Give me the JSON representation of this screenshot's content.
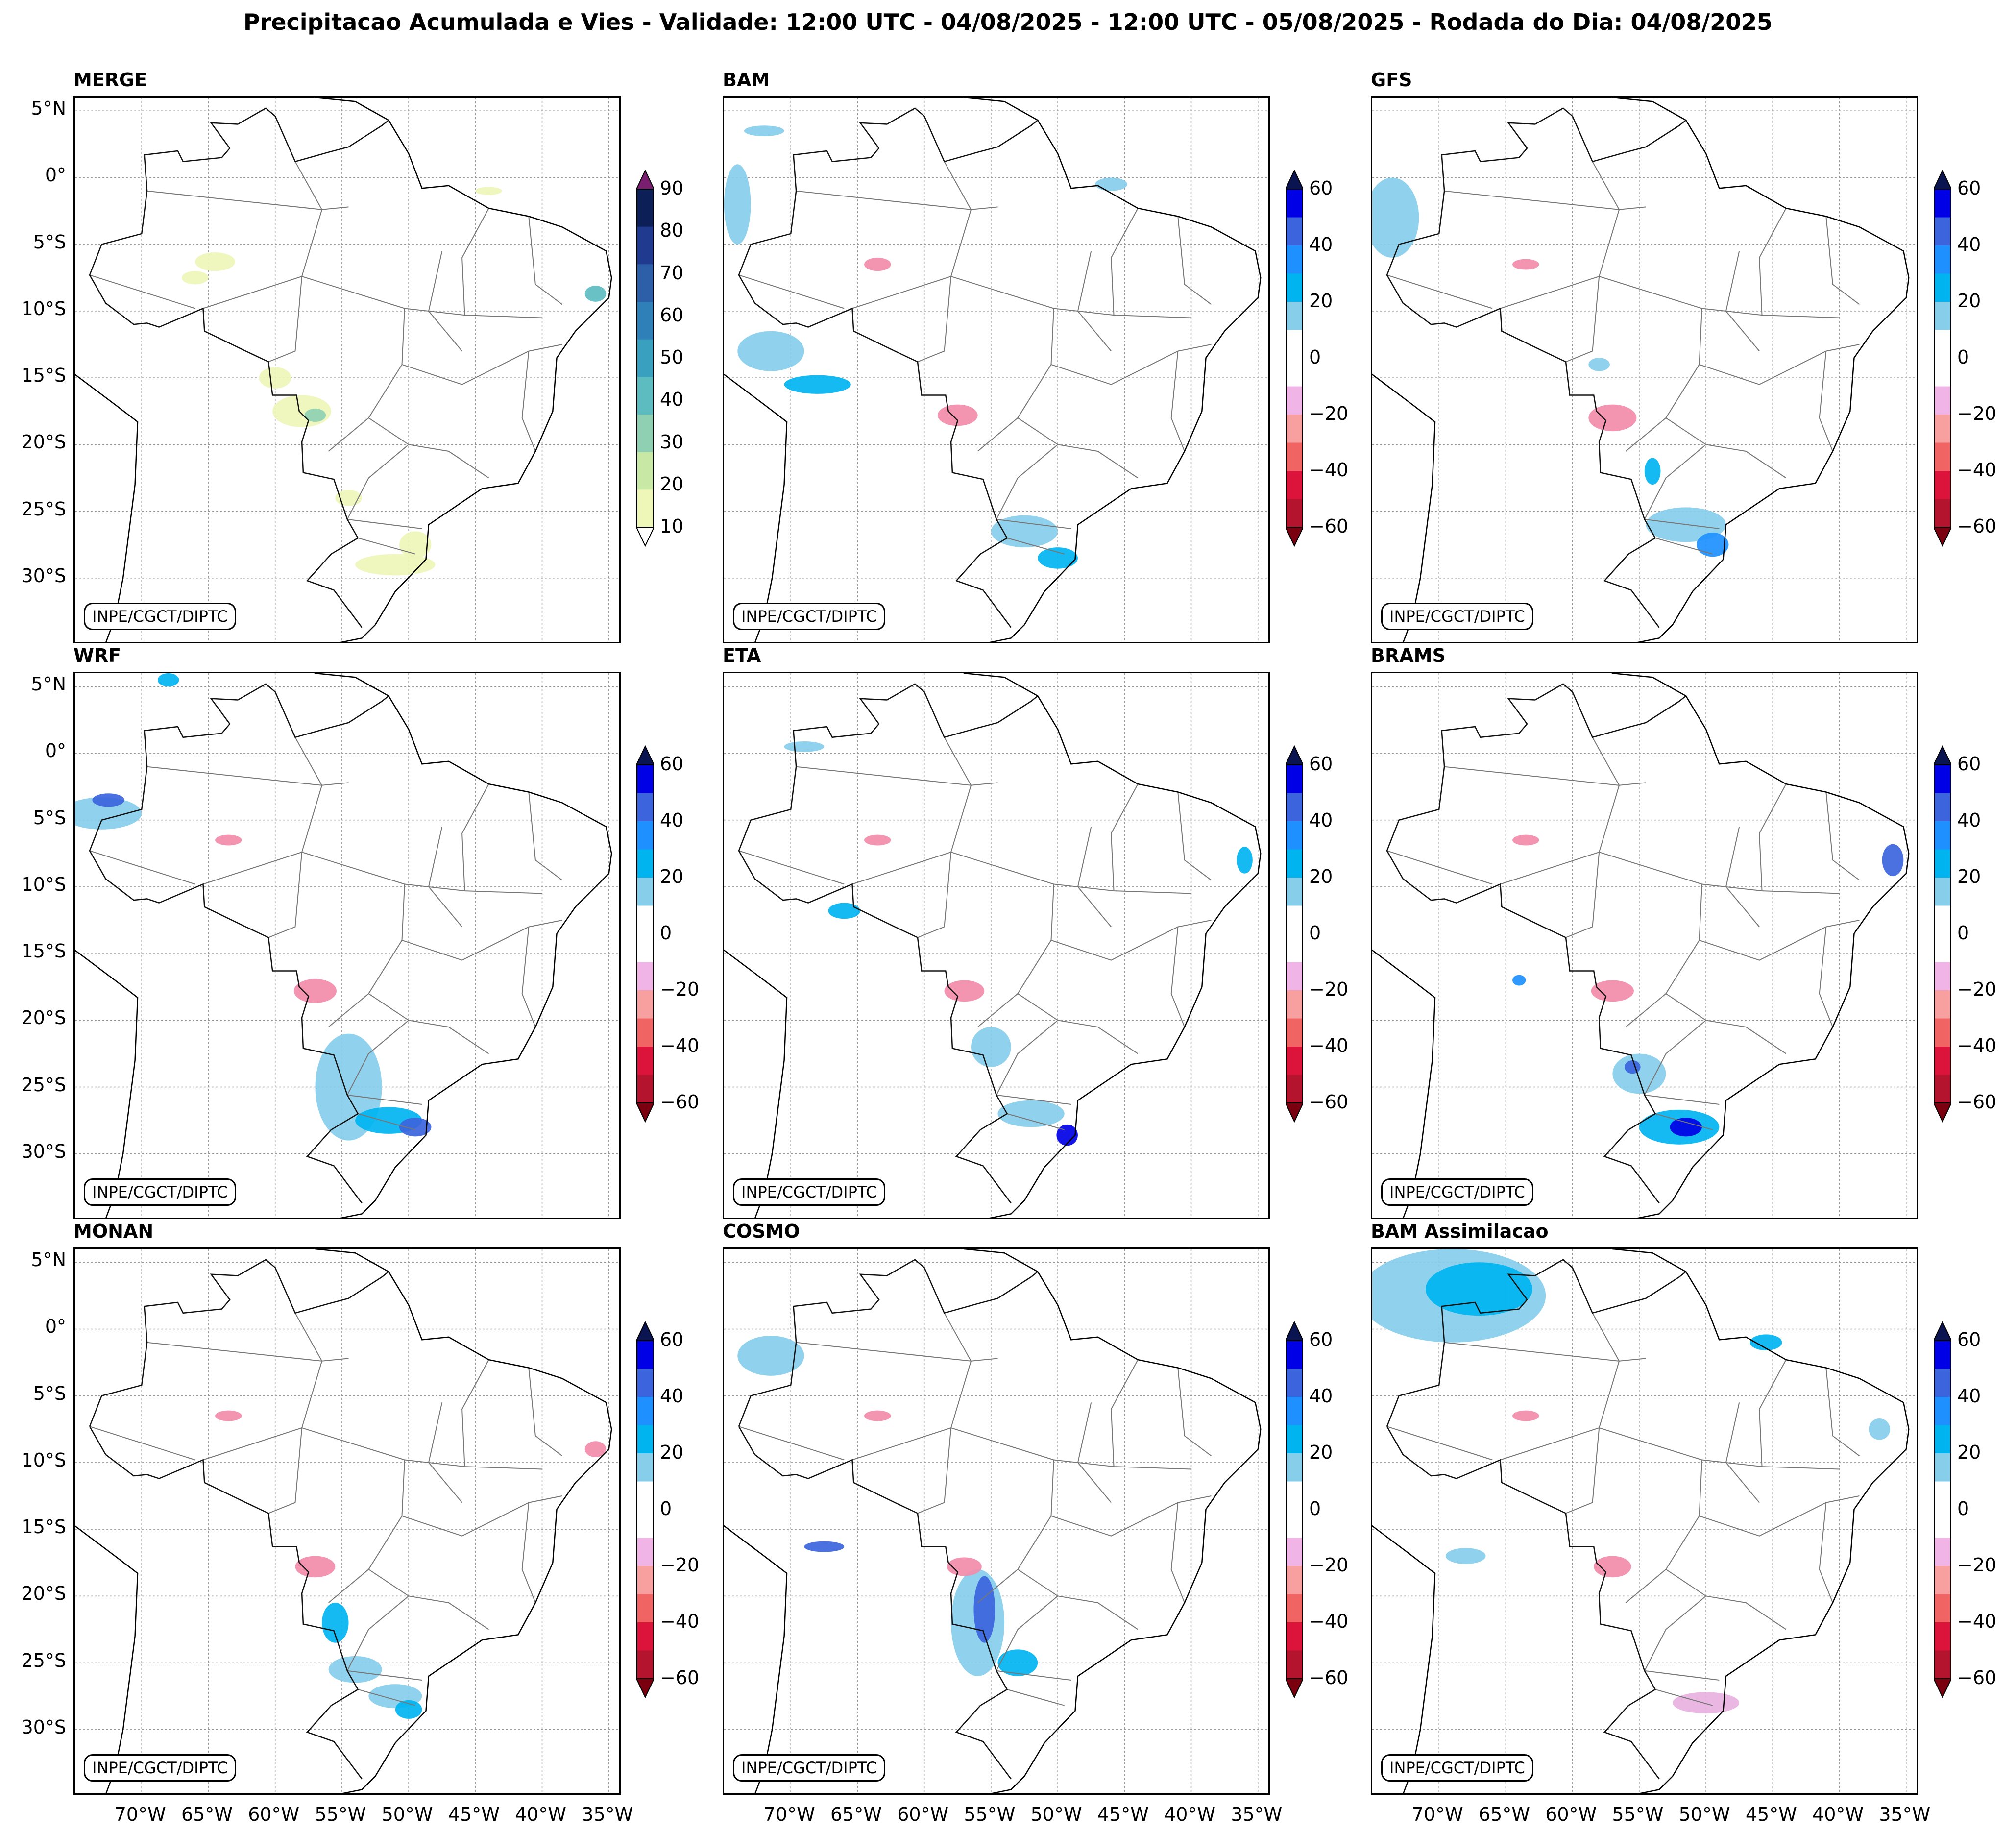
{
  "title": "Precipitacao Acumulada e Vies - Validade: 12:00 UTC - 04/08/2025 - 12:00 UTC - 05/08/2025 - Rodada do Dia: 04/08/2025",
  "credit": "INPE/CGCT/DIPTC",
  "lat_labels": [
    "5°N",
    "0°",
    "5°S",
    "10°S",
    "15°S",
    "20°S",
    "25°S",
    "30°S"
  ],
  "lon_labels": [
    "70°W",
    "65°W",
    "60°W",
    "55°W",
    "50°W",
    "45°W",
    "40°W",
    "35°W"
  ],
  "panels": [
    {
      "name": "MERGE",
      "colorbar": "precip"
    },
    {
      "name": "BAM",
      "colorbar": "bias"
    },
    {
      "name": "GFS",
      "colorbar": "bias"
    },
    {
      "name": "WRF",
      "colorbar": "bias"
    },
    {
      "name": "ETA",
      "colorbar": "bias"
    },
    {
      "name": "BRAMS",
      "colorbar": "bias"
    },
    {
      "name": "MONAN",
      "colorbar": "bias"
    },
    {
      "name": "COSMO",
      "colorbar": "bias"
    },
    {
      "name": "BAM Assimilacao",
      "colorbar": "bias"
    }
  ],
  "colorbars": {
    "precip": {
      "ticks": [
        "90",
        "80",
        "70",
        "60",
        "50",
        "40",
        "30",
        "20",
        "10"
      ],
      "colors": [
        "#0d1f57",
        "#1f3a8f",
        "#2d5fa8",
        "#2f7fb8",
        "#3aa0bf",
        "#5cbcc0",
        "#8fd0b2",
        "#c8e8a6",
        "#eef6b8"
      ],
      "over": "#7a1f6f",
      "under": "#ffffff"
    },
    "bias": {
      "ticks": [
        "60",
        "40",
        "20",
        "0",
        "−20",
        "−40",
        "−60"
      ],
      "colors": [
        "#0000e6",
        "#3c64dc",
        "#1e90ff",
        "#00b4f0",
        "#87ceeb",
        "#ffffff",
        "#ffffff",
        "#f0b4e6",
        "#f8a0a0",
        "#f06464",
        "#dc143c",
        "#b4142d"
      ],
      "over": "#0a1450",
      "under": "#7a0010"
    }
  },
  "map_extent": {
    "lon": [
      -75,
      -34
    ],
    "lat": [
      -35,
      6
    ]
  }
}
